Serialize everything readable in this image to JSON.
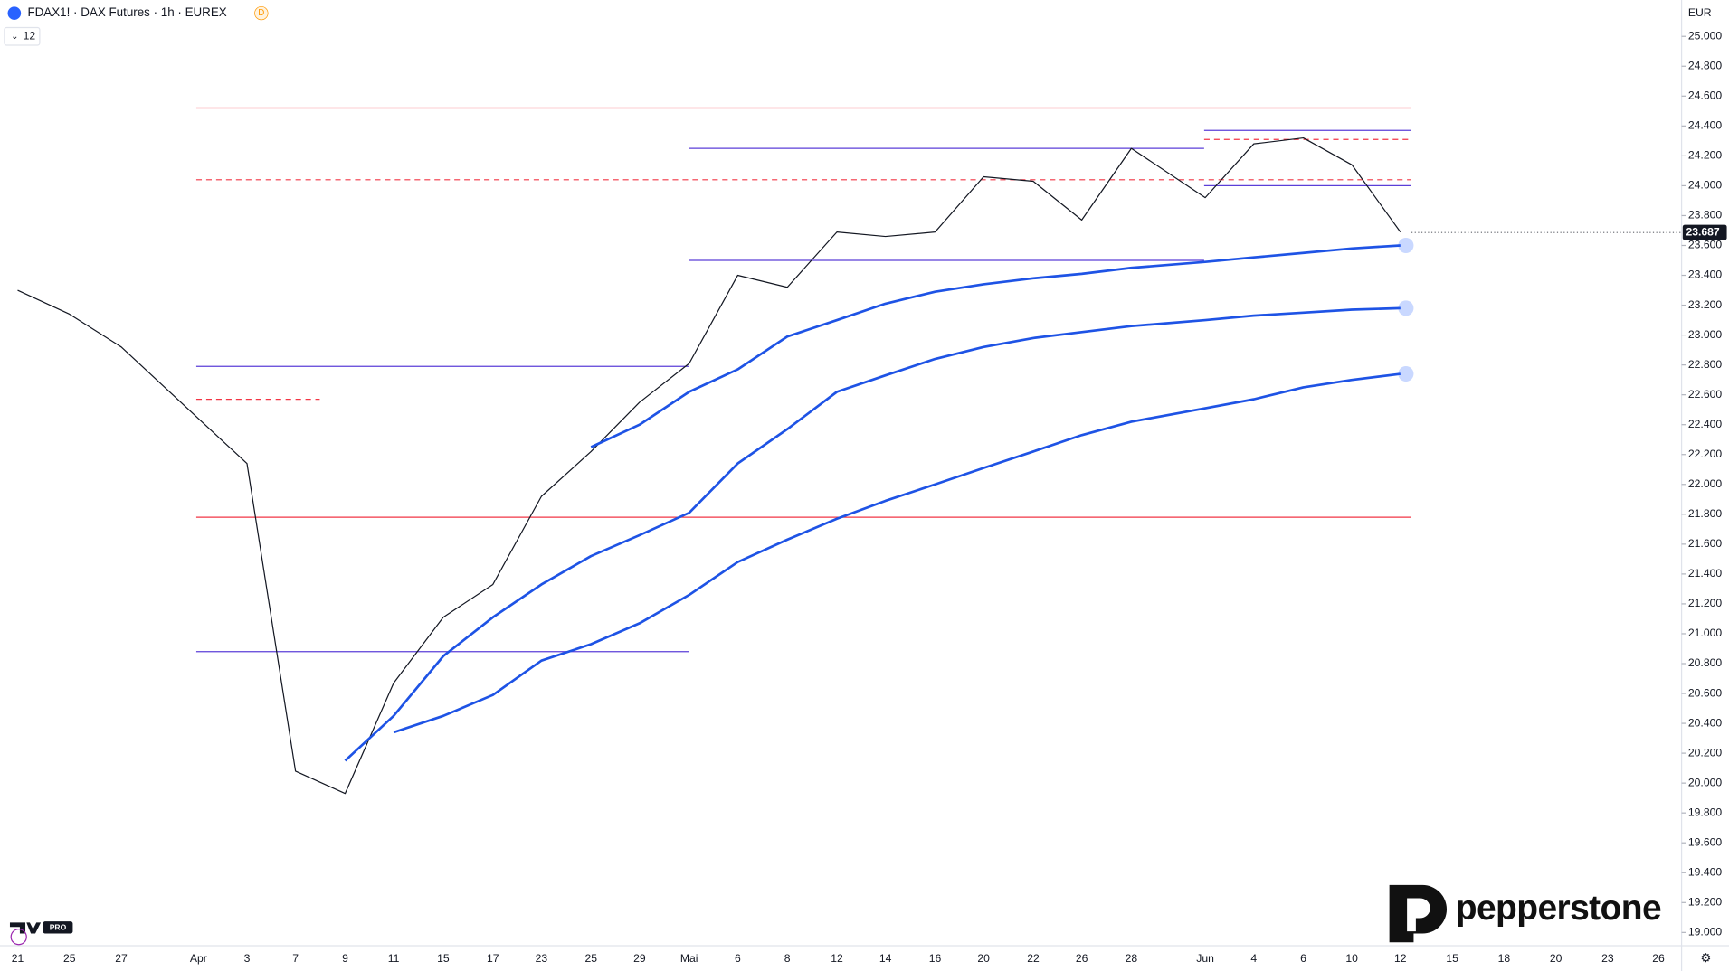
{
  "chart_data": {
    "type": "line",
    "title": "FDAX1! · DAX Futures · 1h · EUREX",
    "session_badge": "D",
    "indicator_count": "12",
    "currency": "EUR",
    "brand": "pepperstone",
    "platform_badge": "PRO",
    "categories": [
      "21",
      "25",
      "27",
      "Apr",
      "3",
      "7",
      "9",
      "11",
      "15",
      "17",
      "23",
      "25",
      "29",
      "Mai",
      "6",
      "8",
      "12",
      "14",
      "16",
      "20",
      "22",
      "26",
      "28",
      "Jun",
      "4",
      "6",
      "10",
      "12",
      "15",
      "18",
      "20",
      "23",
      "26"
    ],
    "series": [
      {
        "color": "#131722",
        "values": [
          23300,
          23140,
          22920,
          22440,
          22140,
          20080,
          19930,
          20670,
          21110,
          21330,
          21920,
          22220,
          22550,
          22810,
          23400,
          23320,
          23690,
          23660,
          23690,
          24060,
          24030,
          23770,
          24250,
          23920,
          24280,
          24320,
          24140,
          23690,
          null,
          null,
          null,
          null,
          null
        ]
      },
      {
        "color": "#1e53e5",
        "values": [
          null,
          null,
          null,
          null,
          null,
          null,
          null,
          null,
          null,
          null,
          null,
          22250,
          22400,
          22620,
          22770,
          22990,
          23100,
          23210,
          23290,
          23340,
          23380,
          23410,
          23450,
          23490,
          23520,
          23550,
          23580,
          23600,
          null,
          null,
          null,
          null,
          null
        ]
      },
      {
        "color": "#1e53e5",
        "values": [
          null,
          null,
          null,
          null,
          null,
          null,
          20150,
          20450,
          20850,
          21110,
          21330,
          21520,
          21660,
          21810,
          22140,
          22370,
          22620,
          22730,
          22840,
          22920,
          22980,
          23020,
          23060,
          23100,
          23130,
          23150,
          23170,
          23180,
          null,
          null,
          null,
          null,
          null
        ]
      },
      {
        "color": "#1e53e5",
        "values": [
          null,
          null,
          null,
          null,
          null,
          null,
          null,
          20340,
          20450,
          20590,
          20820,
          20930,
          21070,
          21260,
          21480,
          21630,
          21770,
          21890,
          22000,
          22110,
          22220,
          22330,
          22420,
          22510,
          22570,
          22650,
          22700,
          22740,
          null,
          null,
          null,
          null,
          null
        ]
      }
    ],
    "levels": [
      {
        "value": 24520,
        "color": "#f23645",
        "dashed": false
      },
      {
        "value": 21780,
        "color": "#f23645",
        "dashed": false
      },
      {
        "value": 24040,
        "color": "#f23645",
        "dashed": true
      },
      {
        "value": 22570,
        "color": "#f23645",
        "dashed": true
      },
      {
        "value": 24250,
        "color": "#5b3fd8",
        "dashed": false
      },
      {
        "value": 23500,
        "color": "#5b3fd8",
        "dashed": false
      },
      {
        "value": 22790,
        "color": "#5b3fd8",
        "dashed": false
      },
      {
        "value": 20880,
        "color": "#5b3fd8",
        "dashed": false
      },
      {
        "value": 24370,
        "color": "#5b3fd8",
        "dashed": false
      },
      {
        "value": 24000,
        "color": "#5b3fd8",
        "dashed": false
      },
      {
        "value": 24310,
        "color": "#f23645",
        "dashed": true
      }
    ],
    "last_price": {
      "value": 23687,
      "label": "23.687"
    },
    "ylim": [
      18950,
      25080
    ],
    "yticks": [
      {
        "value": 19000,
        "label": "19.000"
      },
      {
        "value": 19200,
        "label": "19.200"
      },
      {
        "value": 19400,
        "label": "19.400"
      },
      {
        "value": 19600,
        "label": "19.600"
      },
      {
        "value": 19800,
        "label": "19.800"
      },
      {
        "value": 20000,
        "label": "20.000"
      },
      {
        "value": 20200,
        "label": "20.200"
      },
      {
        "value": 20400,
        "label": "20.400"
      },
      {
        "value": 20600,
        "label": "20.600"
      },
      {
        "value": 20800,
        "label": "20.800"
      },
      {
        "value": 21000,
        "label": "21.000"
      },
      {
        "value": 21200,
        "label": "21.200"
      },
      {
        "value": 21400,
        "label": "21.400"
      },
      {
        "value": 21600,
        "label": "21.600"
      },
      {
        "value": 21800,
        "label": "21.800"
      },
      {
        "value": 22000,
        "label": "22.000"
      },
      {
        "value": 22200,
        "label": "22.200"
      },
      {
        "value": 22400,
        "label": "22.400"
      },
      {
        "value": 22600,
        "label": "22.600"
      },
      {
        "value": 22800,
        "label": "22.800"
      },
      {
        "value": 23000,
        "label": "23.000"
      },
      {
        "value": 23200,
        "label": "23.200"
      },
      {
        "value": 23400,
        "label": "23.400"
      },
      {
        "value": 23600,
        "label": "23.600"
      },
      {
        "value": 23800,
        "label": "23.800"
      },
      {
        "value": 24000,
        "label": "24.000"
      },
      {
        "value": 24200,
        "label": "24.200"
      },
      {
        "value": 24400,
        "label": "24.400"
      },
      {
        "value": 24600,
        "label": "24.600"
      },
      {
        "value": 24800,
        "label": "24.800"
      },
      {
        "value": 25000,
        "label": "25.000"
      }
    ],
    "grid": false
  }
}
